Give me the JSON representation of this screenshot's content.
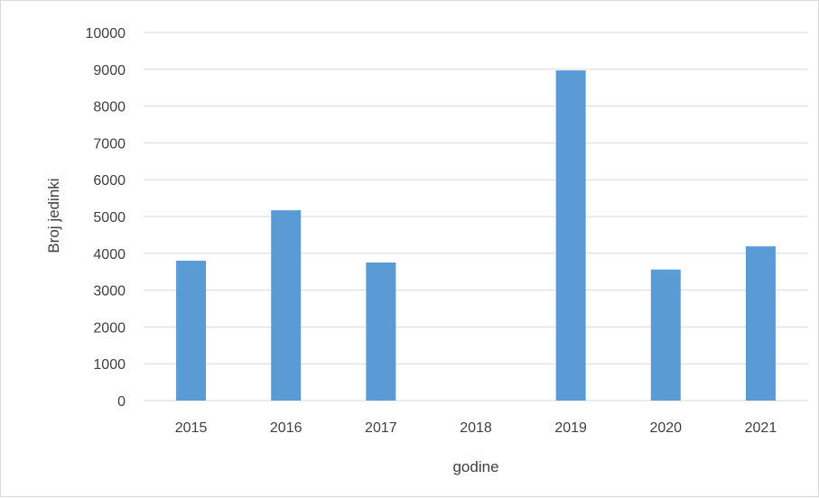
{
  "chart_data": {
    "type": "bar",
    "categories": [
      "2015",
      "2016",
      "2017",
      "2018",
      "2019",
      "2020",
      "2021"
    ],
    "values": [
      3800,
      5170,
      3750,
      0,
      8970,
      3560,
      4190
    ],
    "title": "",
    "xlabel": "godine",
    "ylabel": "Broj jedinki",
    "ylim": [
      0,
      10000
    ],
    "yticks": [
      "0",
      "1000",
      "2000",
      "3000",
      "4000",
      "5000",
      "6000",
      "7000",
      "8000",
      "9000",
      "10000"
    ],
    "grid": true,
    "legend": "none",
    "bar_color": "#5b9bd5"
  }
}
